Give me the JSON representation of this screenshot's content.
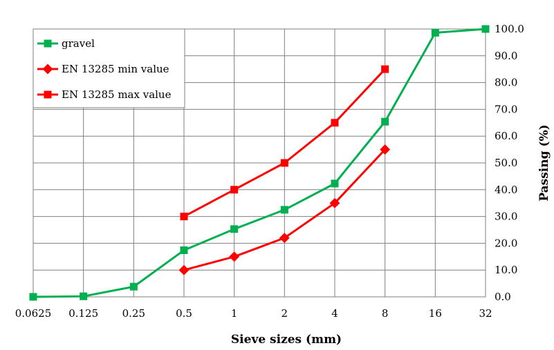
{
  "chart_data": {
    "type": "line",
    "title": "",
    "xlabel": "Sieve sizes (mm)",
    "ylabel": "Passing (%)",
    "x_scale": "log2",
    "categories": [
      "0.0625",
      "0.125",
      "0.25",
      "0.5",
      "1",
      "2",
      "4",
      "8",
      "16",
      "32"
    ],
    "y_ticks": [
      "0.0",
      "10.0",
      "20.0",
      "30.0",
      "40.0",
      "50.0",
      "60.0",
      "70.0",
      "80.0",
      "90.0",
      "100.0"
    ],
    "ylim": [
      0,
      100
    ],
    "y_axis_position": "right",
    "grid": true,
    "legend_position": "top-left",
    "series": [
      {
        "name": "gravel",
        "color": "#00b050",
        "marker": "square",
        "x": [
          0.0625,
          0.125,
          0.25,
          0.5,
          1,
          2,
          4,
          8,
          16,
          32
        ],
        "values": [
          0.0,
          0.2,
          3.8,
          17.4,
          25.3,
          32.5,
          42.3,
          65.4,
          98.6,
          100.0
        ]
      },
      {
        "name": "EN 13285 min value",
        "color": "#ff0000",
        "marker": "diamond",
        "x": [
          0.5,
          1,
          2,
          4,
          8
        ],
        "values": [
          10,
          15,
          22,
          35,
          55
        ]
      },
      {
        "name": "EN 13285 max value",
        "color": "#ff0000",
        "marker": "square",
        "x": [
          0.5,
          1,
          2,
          4,
          8
        ],
        "values": [
          30,
          40,
          50,
          65,
          85
        ]
      }
    ]
  }
}
